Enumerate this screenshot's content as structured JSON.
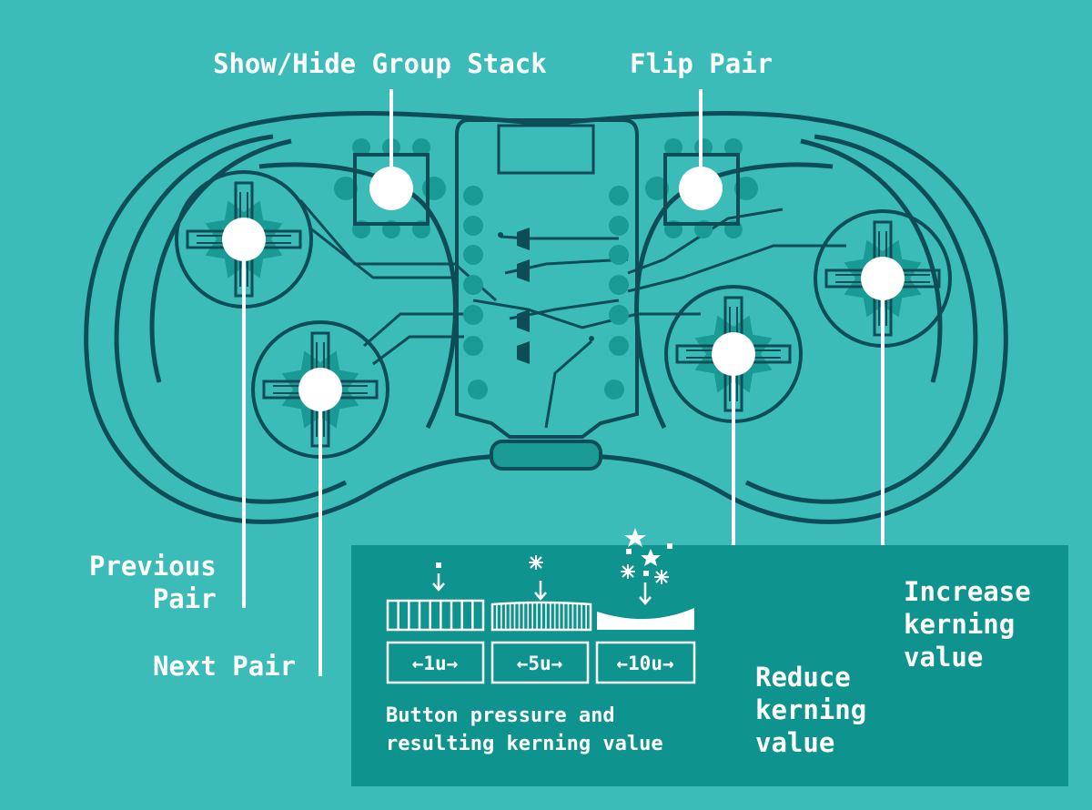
{
  "labels": {
    "show_hide": "Show/Hide Group Stack",
    "flip_pair": "Flip Pair",
    "previous_pair": "Previous\n    Pair",
    "next_pair": "Next Pair",
    "reduce": "Reduce\nkerning\nvalue",
    "increase": "Increase\nkerning\nvalue"
  },
  "legend": {
    "scale_1": "←1u→",
    "scale_5": "←5u→",
    "scale_10": "←10u→",
    "caption": "Button pressure and\nresulting kerning value"
  },
  "colors": {
    "background": "#3bbcb8",
    "outline": "#0e4d57",
    "panel": "#0f938f",
    "button": "#ffffff",
    "pad": "#1a9a95"
  }
}
